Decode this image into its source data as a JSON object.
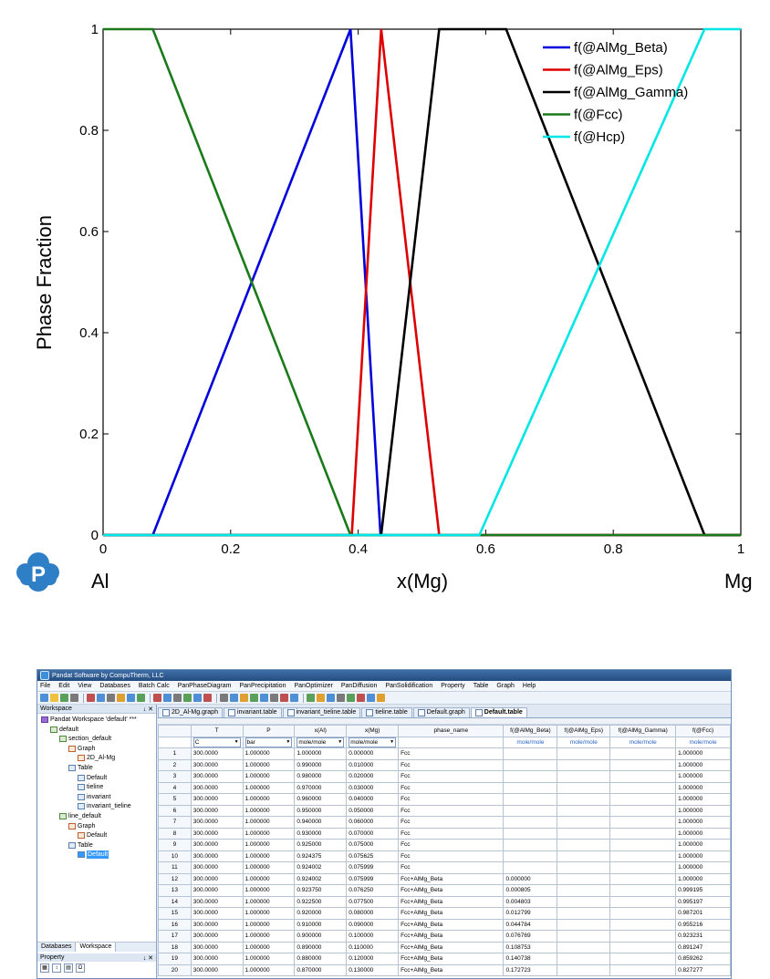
{
  "chart_data": {
    "type": "line",
    "xlabel": "x(Mg)",
    "ylabel": "Phase Fraction",
    "x_end_labels": {
      "left": "Al",
      "right": "Mg"
    },
    "xlim": [
      0,
      1
    ],
    "ylim": [
      0,
      1
    ],
    "xticks": [
      "0",
      "0.2",
      "0.4",
      "0.6",
      "0.8",
      "1"
    ],
    "yticks": [
      "0",
      "0.2",
      "0.4",
      "0.6",
      "0.8",
      "1"
    ],
    "legend_position": "top-right",
    "grid": false,
    "series": [
      {
        "name": "f(@AlMg_Beta)",
        "color": "#0000dd",
        "x": [
          0.0,
          0.078,
          0.388,
          0.435,
          1.0
        ],
        "y": [
          0,
          0,
          1,
          0,
          0
        ]
      },
      {
        "name": "f(@AlMg_Eps)",
        "color": "#dd0000",
        "x": [
          0.0,
          0.39,
          0.436,
          0.527,
          1.0
        ],
        "y": [
          0,
          0,
          1,
          0,
          0
        ]
      },
      {
        "name": "f(@AlMg_Gamma)",
        "color": "#000000",
        "x": [
          0.0,
          0.436,
          0.527,
          0.632,
          0.943,
          1.0
        ],
        "y": [
          0,
          0,
          1,
          1,
          0,
          0
        ]
      },
      {
        "name": "f(@Fcc)",
        "color": "#1a7a1a",
        "x": [
          0.0,
          0.078,
          0.388,
          1.0
        ],
        "y": [
          1,
          1,
          0,
          0
        ]
      },
      {
        "name": "f(@Hcp)",
        "color": "#00e5e5",
        "x": [
          0.0,
          0.59,
          0.943,
          1.0
        ],
        "y": [
          0,
          0,
          1,
          1
        ]
      }
    ]
  },
  "logo": {
    "letter": "P",
    "color": "#2f7fc7"
  },
  "app": {
    "title": "Pandat Software by CompuTherm, LLC",
    "menu": [
      "File",
      "Edit",
      "View",
      "Databases",
      "Batch Calc",
      "PanPhaseDiagram",
      "PanPrecipitation",
      "PanOptimizer",
      "PanDiffusion",
      "PanSolidification",
      "Property",
      "Table",
      "Graph",
      "Help"
    ],
    "workspace_panel": {
      "title": "Workspace",
      "controls": "↓ ✕"
    },
    "tree": [
      {
        "label": "Pandat Workspace 'default' ***",
        "level": 0,
        "icon": "ws"
      },
      {
        "label": "default",
        "level": 1,
        "icon": "sec"
      },
      {
        "label": "section_default",
        "level": 2,
        "icon": "sec"
      },
      {
        "label": "Graph",
        "level": 3,
        "icon": "graph"
      },
      {
        "label": "2D_Al-Mg",
        "level": 4,
        "icon": "graph"
      },
      {
        "label": "Table",
        "level": 3,
        "icon": "table"
      },
      {
        "label": "Default",
        "level": 4,
        "icon": "table"
      },
      {
        "label": "tieline",
        "level": 4,
        "icon": "table"
      },
      {
        "label": "invariant",
        "level": 4,
        "icon": "table"
      },
      {
        "label": "invariant_tieline",
        "level": 4,
        "icon": "table"
      },
      {
        "label": "line_default",
        "level": 2,
        "icon": "sec"
      },
      {
        "label": "Graph",
        "level": 3,
        "icon": "graph"
      },
      {
        "label": "Default",
        "level": 4,
        "icon": "graph"
      },
      {
        "label": "Table",
        "level": 3,
        "icon": "table"
      },
      {
        "label": "Default",
        "level": 4,
        "icon": "table",
        "selected": true
      }
    ],
    "left_tabs": [
      "Databases",
      "Workspace"
    ],
    "property_panel": {
      "title": "Property",
      "controls": "↓ ✕"
    },
    "doc_tabs": [
      "2D_Al-Mg.graph",
      "invariant.table",
      "invariant_tieline.table",
      "tieline.table",
      "Default.graph",
      "Default.table"
    ],
    "active_tab": "Default.table",
    "table": {
      "headers": [
        "T",
        "P",
        "x(Al)",
        "x(Mg)",
        "phase_name",
        "f(@AlMg_Beta)",
        "f(@AlMg_Eps)",
        "f(@AlMg_Gamma)",
        "f(@Fcc)"
      ],
      "unit_selects": [
        "C",
        "bar",
        "mole/mole",
        "mole/mole"
      ],
      "units": [
        "mole/mole",
        "mole/mole",
        "mole/mole",
        "mole/mole"
      ],
      "rows": [
        [
          "1",
          "300.0000",
          "1.000000",
          "1.000000",
          "0.000000",
          "Fcc",
          "",
          "",
          "",
          "1.000000"
        ],
        [
          "2",
          "300.0000",
          "1.000000",
          "0.990000",
          "0.010000",
          "Fcc",
          "",
          "",
          "",
          "1.000000"
        ],
        [
          "3",
          "300.0000",
          "1.000000",
          "0.980000",
          "0.020000",
          "Fcc",
          "",
          "",
          "",
          "1.000000"
        ],
        [
          "4",
          "300.0000",
          "1.000000",
          "0.970000",
          "0.030000",
          "Fcc",
          "",
          "",
          "",
          "1.000000"
        ],
        [
          "5",
          "300.0000",
          "1.000000",
          "0.960000",
          "0.040000",
          "Fcc",
          "",
          "",
          "",
          "1.000000"
        ],
        [
          "6",
          "300.0000",
          "1.000000",
          "0.950000",
          "0.050000",
          "Fcc",
          "",
          "",
          "",
          "1.000000"
        ],
        [
          "7",
          "300.0000",
          "1.000000",
          "0.940000",
          "0.060000",
          "Fcc",
          "",
          "",
          "",
          "1.000000"
        ],
        [
          "8",
          "300.0000",
          "1.000000",
          "0.930000",
          "0.070000",
          "Fcc",
          "",
          "",
          "",
          "1.000000"
        ],
        [
          "9",
          "300.0000",
          "1.000000",
          "0.925000",
          "0.075000",
          "Fcc",
          "",
          "",
          "",
          "1.000000"
        ],
        [
          "10",
          "300.0000",
          "1.000000",
          "0.924375",
          "0.075625",
          "Fcc",
          "",
          "",
          "",
          "1.000000"
        ],
        [
          "11",
          "300.0000",
          "1.000000",
          "0.924002",
          "0.075999",
          "Fcc",
          "",
          "",
          "",
          "1.000000"
        ],
        [
          "12",
          "300.0000",
          "1.000000",
          "0.924002",
          "0.075999",
          "Fcc+AlMg_Beta",
          "0.000000",
          "",
          "",
          "1.000000"
        ],
        [
          "13",
          "300.0000",
          "1.000000",
          "0.923750",
          "0.076250",
          "Fcc+AlMg_Beta",
          "0.000805",
          "",
          "",
          "0.999195"
        ],
        [
          "14",
          "300.0000",
          "1.000000",
          "0.922500",
          "0.077500",
          "Fcc+AlMg_Beta",
          "0.004803",
          "",
          "",
          "0.995197"
        ],
        [
          "15",
          "300.0000",
          "1.000000",
          "0.920000",
          "0.080000",
          "Fcc+AlMg_Beta",
          "0.012799",
          "",
          "",
          "0.987201"
        ],
        [
          "16",
          "300.0000",
          "1.000000",
          "0.910000",
          "0.090000",
          "Fcc+AlMg_Beta",
          "0.044784",
          "",
          "",
          "0.955216"
        ],
        [
          "17",
          "300.0000",
          "1.000000",
          "0.900000",
          "0.100000",
          "Fcc+AlMg_Beta",
          "0.076769",
          "",
          "",
          "0.923231"
        ],
        [
          "18",
          "300.0000",
          "1.000000",
          "0.890000",
          "0.110000",
          "Fcc+AlMg_Beta",
          "0.108753",
          "",
          "",
          "0.891247"
        ],
        [
          "19",
          "300.0000",
          "1.000000",
          "0.880000",
          "0.120000",
          "Fcc+AlMg_Beta",
          "0.140738",
          "",
          "",
          "0.859262"
        ],
        [
          "20",
          "300.0000",
          "1.000000",
          "0.870000",
          "0.130000",
          "Fcc+AlMg_Beta",
          "0.172723",
          "",
          "",
          "0.827277"
        ]
      ]
    }
  }
}
